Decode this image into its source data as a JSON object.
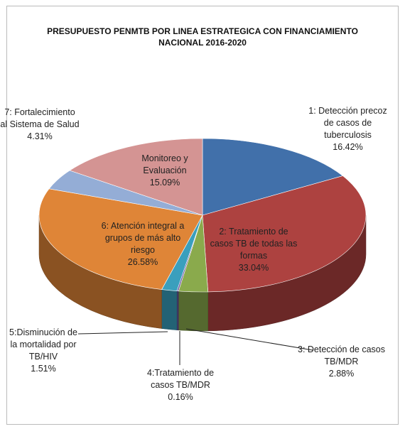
{
  "chart_data": {
    "type": "pie3d",
    "title": "PRESUPUESTO PENMTB POR LINEA ESTRATEGICA CON FINANCIAMIENTO NACIONAL 2016-2020",
    "categories": [
      "1: Detección precoz de casos de tuberculosis",
      "2: Tratamiento de casos TB de todas las formas",
      "3: Detección de casos TB/MDR",
      "4:Tratamiento de casos TB/MDR",
      "5:Disminución de la mortalidad por TB/HIV",
      "6: Atención integral a grupos de más alto riesgo",
      "7: Fortalecimiento al Sistema de Salud",
      "Monitoreo y Evaluación"
    ],
    "values": [
      16.42,
      33.04,
      2.88,
      0.16,
      1.51,
      26.58,
      4.31,
      15.09
    ],
    "value_labels": [
      "16.42%",
      "33.04%",
      "2.88%",
      "0.16%",
      "1.51%",
      "26.58%",
      "4.31%",
      "15.09%"
    ],
    "colors": [
      "#4170aa",
      "#ad4240",
      "#8aaa4c",
      "#6c55a0",
      "#3a9fbd",
      "#df8537",
      "#94add6",
      "#d49493"
    ]
  }
}
